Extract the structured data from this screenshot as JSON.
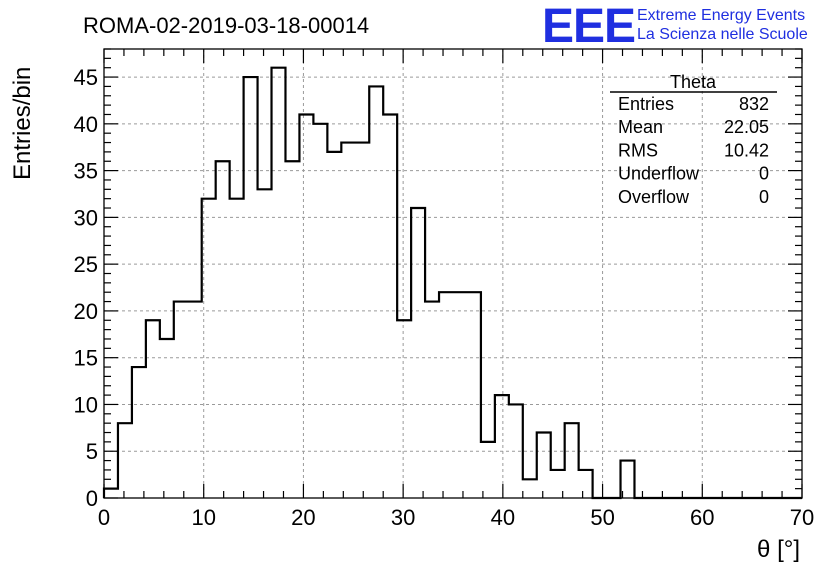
{
  "title": "ROMA-02-2019-03-18-00014",
  "logo": {
    "mark": "EEE",
    "line1": "Extreme Energy Events",
    "line2": "La Scienza nelle Scuole"
  },
  "stats": {
    "name": "Theta",
    "rows": [
      {
        "label": "Entries",
        "value": "832"
      },
      {
        "label": "Mean",
        "value": "22.05"
      },
      {
        "label": "RMS",
        "value": "10.42"
      },
      {
        "label": "Underflow",
        "value": "0"
      },
      {
        "label": "Overflow",
        "value": "0"
      }
    ]
  },
  "chart_data": {
    "type": "bar",
    "histogram": true,
    "xlabel": "θ [°]",
    "ylabel": "Entries/bin",
    "xlim": [
      0,
      70
    ],
    "ylim": [
      0,
      48
    ],
    "grid": true,
    "bin_width": 1.4,
    "xticks": [
      0,
      10,
      20,
      30,
      40,
      50,
      60,
      70
    ],
    "yticks": [
      0,
      5,
      10,
      15,
      20,
      25,
      30,
      35,
      40,
      45
    ],
    "bin_edges_start": 0,
    "values": [
      1,
      8,
      14,
      19,
      17,
      21,
      21,
      32,
      36,
      32,
      45,
      33,
      46,
      36,
      41,
      40,
      37,
      38,
      38,
      44,
      41,
      19,
      31,
      21,
      22,
      22,
      22,
      6,
      11,
      10,
      2,
      7,
      3,
      8,
      3,
      0,
      0,
      4,
      0,
      0,
      0,
      0,
      0,
      0,
      0,
      0,
      0,
      0,
      0,
      0
    ]
  }
}
